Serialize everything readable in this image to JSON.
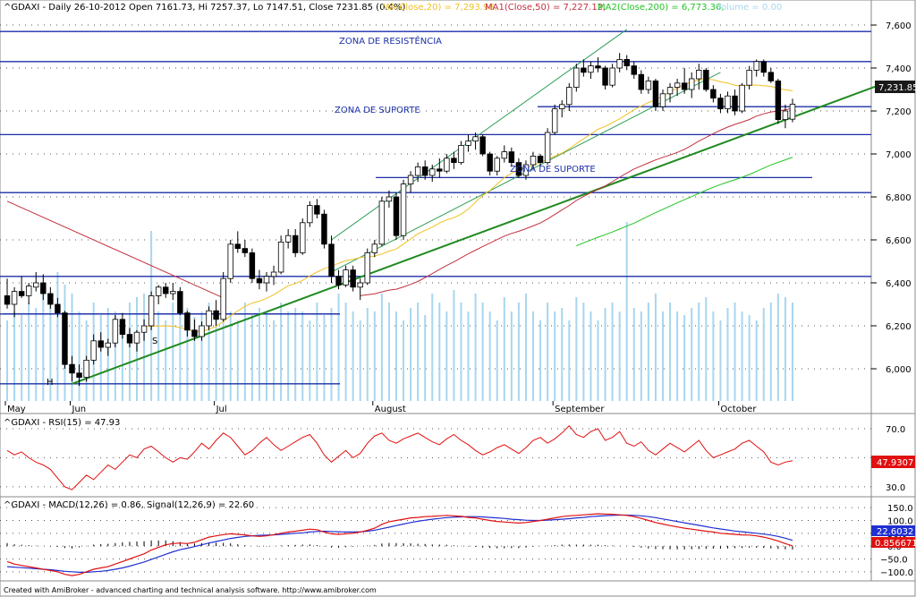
{
  "header": {
    "symbol": "^GDAXI - Daily 26-10-2012 Open 7161.73, Hi 7257.37, Lo 7147.51, Close 7231.85 (0.4%)",
    "ma": "MA(Close,20) = 7,293.98,",
    "ma1": "MA1(Close,50) = 7,227.12,",
    "ma2": "MA2(Close,200) = 6,773.36,",
    "volume": "Volume = 0.00"
  },
  "colors": {
    "up": "#ffffff",
    "down": "#000000",
    "support": "#1c2fa8",
    "trend": "#1f8a1f",
    "channel": "#2e9e5a",
    "ma20": "#f0c020",
    "ma50": "#c23040",
    "ma200": "#22c422",
    "volume": "#a8d6ee",
    "rsi": "#e01010",
    "macd": "#e01010",
    "signal": "#2030d0",
    "hist": "#000000",
    "last_price_bg": "#1a1a1a",
    "rsi_bg": "#e01010",
    "signal_bg": "#2030d0",
    "macd_bg": "#e01010"
  },
  "chart_data": [
    {
      "type": "candlestick",
      "title": "^GDAXI - Daily",
      "y_ticks": [
        6000,
        6200,
        6400,
        6600,
        6800,
        7000,
        7200,
        7400,
        7600
      ],
      "ylim": [
        5850,
        7650
      ],
      "x_labels": [
        "May",
        "Jun",
        "Jul",
        "August",
        "September",
        "October"
      ],
      "last_price_label": "7,231.85",
      "annotations": {
        "resistance": "ZONA DE RESISTÊNCIA",
        "support1": "ZONA DE SUPORTE",
        "support2": "ZONA DE SUPORTE",
        "head": "H",
        "shoulder": "S"
      },
      "horizontal_levels": [
        7570,
        7430,
        7090,
        6820,
        6430,
        6255,
        5930
      ],
      "ohlc": [
        [
          6340,
          6420,
          6280,
          6300
        ],
        [
          6300,
          6380,
          6240,
          6360
        ],
        [
          6360,
          6430,
          6330,
          6340
        ],
        [
          6340,
          6400,
          6300,
          6385
        ],
        [
          6380,
          6450,
          6360,
          6400
        ],
        [
          6400,
          6440,
          6320,
          6350
        ],
        [
          6350,
          6380,
          6280,
          6300
        ],
        [
          6300,
          6330,
          6240,
          6260
        ],
        [
          6260,
          6270,
          6000,
          6020
        ],
        [
          6020,
          6060,
          5940,
          5980
        ],
        [
          5980,
          6020,
          5920,
          5960
        ],
        [
          5960,
          6060,
          5940,
          6040
        ],
        [
          6040,
          6160,
          6020,
          6130
        ],
        [
          6130,
          6170,
          6080,
          6100
        ],
        [
          6100,
          6140,
          6060,
          6120
        ],
        [
          6120,
          6250,
          6100,
          6230
        ],
        [
          6230,
          6260,
          6140,
          6160
        ],
        [
          6160,
          6190,
          6100,
          6120
        ],
        [
          6120,
          6180,
          6080,
          6170
        ],
        [
          6170,
          6230,
          6130,
          6200
        ],
        [
          6200,
          6360,
          6180,
          6340
        ],
        [
          6340,
          6390,
          6300,
          6380
        ],
        [
          6380,
          6400,
          6330,
          6350
        ],
        [
          6350,
          6400,
          6320,
          6360
        ],
        [
          6360,
          6380,
          6250,
          6260
        ],
        [
          6260,
          6270,
          6150,
          6180
        ],
        [
          6180,
          6230,
          6130,
          6150
        ],
        [
          6150,
          6220,
          6130,
          6200
        ],
        [
          6200,
          6290,
          6180,
          6270
        ],
        [
          6270,
          6320,
          6200,
          6230
        ],
        [
          6230,
          6450,
          6220,
          6420
        ],
        [
          6420,
          6600,
          6400,
          6580
        ],
        [
          6580,
          6640,
          6540,
          6560
        ],
        [
          6560,
          6600,
          6520,
          6540
        ],
        [
          6540,
          6560,
          6400,
          6420
        ],
        [
          6420,
          6460,
          6370,
          6400
        ],
        [
          6400,
          6450,
          6360,
          6430
        ],
        [
          6430,
          6480,
          6390,
          6450
        ],
        [
          6450,
          6620,
          6440,
          6590
        ],
        [
          6590,
          6650,
          6560,
          6620
        ],
        [
          6620,
          6650,
          6520,
          6540
        ],
        [
          6540,
          6700,
          6530,
          6680
        ],
        [
          6680,
          6780,
          6660,
          6760
        ],
        [
          6760,
          6790,
          6700,
          6720
        ],
        [
          6720,
          6740,
          6560,
          6580
        ],
        [
          6580,
          6620,
          6400,
          6430
        ],
        [
          6430,
          6460,
          6370,
          6390
        ],
        [
          6390,
          6480,
          6380,
          6460
        ],
        [
          6460,
          6480,
          6360,
          6380
        ],
        [
          6380,
          6420,
          6320,
          6400
        ],
        [
          6400,
          6560,
          6390,
          6540
        ],
        [
          6540,
          6600,
          6520,
          6580
        ],
        [
          6580,
          6800,
          6570,
          6780
        ],
        [
          6780,
          6830,
          6750,
          6800
        ],
        [
          6800,
          6820,
          6600,
          6620
        ],
        [
          6620,
          6880,
          6600,
          6860
        ],
        [
          6860,
          6920,
          6820,
          6900
        ],
        [
          6900,
          6960,
          6870,
          6940
        ],
        [
          6940,
          6970,
          6880,
          6900
        ],
        [
          6900,
          6950,
          6870,
          6930
        ],
        [
          6930,
          6980,
          6890,
          6920
        ],
        [
          6920,
          7000,
          6910,
          6980
        ],
        [
          6980,
          7010,
          6930,
          6960
        ],
        [
          6960,
          7060,
          6950,
          7040
        ],
        [
          7040,
          7090,
          7010,
          7060
        ],
        [
          7060,
          7100,
          7020,
          7080
        ],
        [
          7080,
          7090,
          6990,
          7000
        ],
        [
          7000,
          7010,
          6900,
          6920
        ],
        [
          6920,
          6990,
          6900,
          6980
        ],
        [
          6980,
          7040,
          6960,
          7010
        ],
        [
          7010,
          7030,
          6940,
          6960
        ],
        [
          6960,
          6980,
          6890,
          6900
        ],
        [
          6900,
          6970,
          6880,
          6950
        ],
        [
          6950,
          7010,
          6930,
          6990
        ],
        [
          6990,
          7000,
          6940,
          6960
        ],
        [
          6960,
          7120,
          6950,
          7100
        ],
        [
          7100,
          7230,
          7090,
          7210
        ],
        [
          7210,
          7250,
          7170,
          7230
        ],
        [
          7230,
          7330,
          7200,
          7310
        ],
        [
          7310,
          7420,
          7290,
          7400
        ],
        [
          7400,
          7440,
          7360,
          7380
        ],
        [
          7380,
          7430,
          7350,
          7410
        ],
        [
          7410,
          7450,
          7380,
          7400
        ],
        [
          7400,
          7410,
          7300,
          7320
        ],
        [
          7320,
          7420,
          7310,
          7400
        ],
        [
          7400,
          7470,
          7380,
          7440
        ],
        [
          7440,
          7460,
          7390,
          7410
        ],
        [
          7410,
          7430,
          7350,
          7370
        ],
        [
          7370,
          7390,
          7280,
          7300
        ],
        [
          7300,
          7360,
          7280,
          7340
        ],
        [
          7340,
          7350,
          7200,
          7220
        ],
        [
          7220,
          7300,
          7200,
          7280
        ],
        [
          7280,
          7330,
          7240,
          7310
        ],
        [
          7310,
          7350,
          7270,
          7330
        ],
        [
          7330,
          7400,
          7280,
          7300
        ],
        [
          7300,
          7380,
          7260,
          7350
        ],
        [
          7350,
          7420,
          7300,
          7390
        ],
        [
          7390,
          7400,
          7290,
          7300
        ],
        [
          7300,
          7320,
          7240,
          7260
        ],
        [
          7260,
          7280,
          7190,
          7210
        ],
        [
          7210,
          7290,
          7190,
          7270
        ],
        [
          7270,
          7300,
          7180,
          7200
        ],
        [
          7200,
          7330,
          7190,
          7320
        ],
        [
          7320,
          7410,
          7300,
          7390
        ],
        [
          7390,
          7440,
          7360,
          7430
        ],
        [
          7430,
          7440,
          7360,
          7380
        ],
        [
          7380,
          7400,
          7330,
          7340
        ],
        [
          7340,
          7350,
          7140,
          7160
        ],
        [
          7160,
          7230,
          7120,
          7200
        ],
        [
          7161.73,
          7257.37,
          7147.51,
          7231.85
        ]
      ]
    },
    {
      "type": "line",
      "title": "^GDAXI - RSI(15) = 47.93",
      "y_ticks": [
        30,
        50,
        70
      ],
      "ylim": [
        25,
        78
      ],
      "last_value_label": "47.9307",
      "series": [
        {
          "name": "RSI(15)",
          "values": [
            55,
            52,
            54,
            50,
            47,
            45,
            42,
            36,
            30,
            28,
            33,
            38,
            35,
            40,
            45,
            42,
            47,
            52,
            50,
            56,
            58,
            54,
            50,
            47,
            50,
            49,
            54,
            60,
            56,
            62,
            67,
            64,
            58,
            52,
            55,
            60,
            64,
            59,
            55,
            58,
            61,
            64,
            66,
            60,
            52,
            47,
            51,
            55,
            50,
            53,
            60,
            65,
            67,
            62,
            60,
            63,
            65,
            67,
            64,
            61,
            59,
            63,
            66,
            62,
            59,
            55,
            52,
            54,
            57,
            59,
            56,
            53,
            57,
            62,
            64,
            60,
            63,
            67,
            72,
            66,
            64,
            68,
            70,
            62,
            64,
            68,
            60,
            58,
            61,
            55,
            52,
            56,
            60,
            57,
            54,
            58,
            62,
            55,
            50,
            52,
            54,
            56,
            60,
            62,
            58,
            54,
            47,
            45,
            47,
            48
          ]
        }
      ]
    },
    {
      "type": "line",
      "title": "^GDAXI - MACD(12,26) = 0.86, Signal(12,26,9) = 22.60",
      "y_ticks": [
        -100,
        -50,
        0,
        50,
        100,
        150
      ],
      "ylim": [
        -125,
        175
      ],
      "signal_label": "22.6032",
      "macd_label": "0.856671",
      "series": [
        {
          "name": "MACD(12,26)",
          "values": [
            -60,
            -70,
            -75,
            -80,
            -85,
            -90,
            -95,
            -100,
            -110,
            -115,
            -110,
            -100,
            -90,
            -85,
            -80,
            -70,
            -60,
            -50,
            -40,
            -30,
            -15,
            -5,
            5,
            10,
            12,
            10,
            15,
            25,
            35,
            40,
            45,
            48,
            46,
            44,
            40,
            38,
            40,
            45,
            50,
            55,
            58,
            62,
            66,
            64,
            55,
            48,
            46,
            48,
            50,
            55,
            62,
            70,
            85,
            95,
            100,
            105,
            110,
            112,
            115,
            116,
            118,
            120,
            118,
            116,
            112,
            110,
            105,
            100,
            96,
            94,
            92,
            90,
            92,
            96,
            100,
            105,
            110,
            115,
            118,
            120,
            122,
            124,
            126,
            125,
            124,
            122,
            120,
            115,
            108,
            100,
            92,
            86,
            80,
            75,
            70,
            66,
            62,
            58,
            55,
            50,
            48,
            46,
            44,
            43,
            40,
            35,
            28,
            20,
            10,
            0.86
          ]
        },
        {
          "name": "Signal(12,26,9)",
          "values": [
            -80,
            -82,
            -84,
            -86,
            -88,
            -90,
            -92,
            -95,
            -98,
            -100,
            -102,
            -102,
            -100,
            -98,
            -95,
            -90,
            -85,
            -78,
            -70,
            -62,
            -52,
            -42,
            -32,
            -22,
            -14,
            -8,
            -2,
            5,
            12,
            18,
            24,
            30,
            34,
            38,
            40,
            42,
            43,
            44,
            46,
            48,
            50,
            52,
            55,
            57,
            58,
            57,
            56,
            55,
            55,
            56,
            58,
            62,
            68,
            74,
            80,
            86,
            92,
            97,
            101,
            105,
            108,
            111,
            113,
            114,
            115,
            115,
            114,
            112,
            110,
            108,
            105,
            103,
            101,
            100,
            100,
            101,
            103,
            105,
            107,
            110,
            112,
            115,
            117,
            119,
            120,
            121,
            121,
            120,
            118,
            115,
            111,
            106,
            101,
            96,
            91,
            86,
            81,
            76,
            71,
            67,
            63,
            59,
            56,
            53,
            50,
            47,
            43,
            38,
            31,
            22.6
          ]
        }
      ]
    }
  ],
  "footer": "Created with AmiBroker - advanced charting and technical analysis software. http://www.amibroker.com"
}
